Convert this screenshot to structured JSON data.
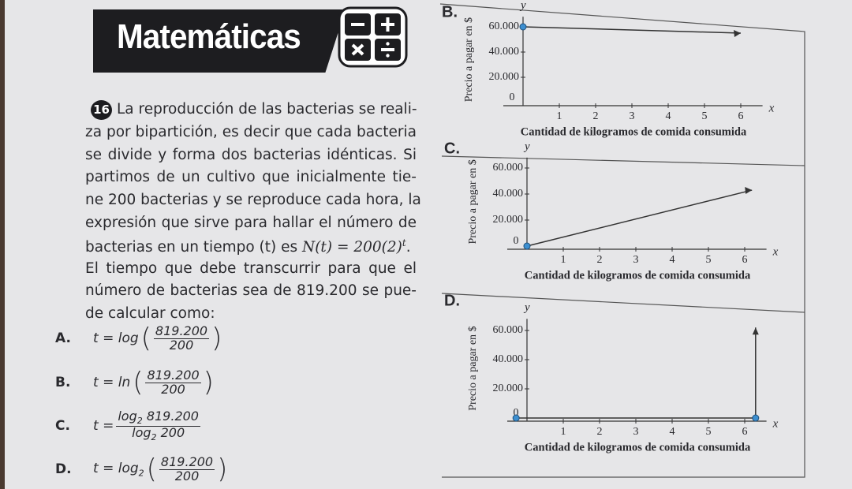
{
  "header": {
    "title": "Matemáticas"
  },
  "problem": {
    "number": "16",
    "lines_before": [
      "La reproducción de las bacterias se reali-",
      "za por bipartición, es decir que cada bacteria",
      "se divide y forma dos bacterias idénticas. Si",
      "partimos de un cultivo que inicialmente tie-",
      "ne 200 bacterias y se reproduce cada hora, la",
      "expresión que sirve para hallar el número de"
    ],
    "formula_line": {
      "lead": "bacterias en un tiempo (t) es ",
      "expr": "N(t) = 200(2)",
      "exponent": "t",
      "end": "."
    },
    "lines_after": [
      "El tiempo que debe transcurrir para que el",
      "número de bacterias sea de 819.200 se pue-",
      "de calcular como:"
    ]
  },
  "options": [
    {
      "letter": "A.",
      "lead": "t = log",
      "numerator": "819.200",
      "denominator": "200"
    },
    {
      "letter": "B.",
      "lead": "t = ln",
      "numerator": "819.200",
      "denominator": "200"
    },
    {
      "letter": "C.",
      "lead": "t =",
      "numerator": {
        "fn": "log",
        "base": "2",
        "arg": "819.200"
      },
      "denominator": {
        "fn": "log",
        "base": "2",
        "arg": "200"
      }
    },
    {
      "letter": "D.",
      "lead": "t = log",
      "base": "2",
      "numerator": "819.200",
      "denominator": "200"
    }
  ],
  "graphs": [
    {
      "letter": "B.",
      "y_label": "y",
      "x_label": "x",
      "y_title": "Precio a pagar en $",
      "x_title": "Cantidad de kilogramos de comida consumida",
      "yticks": [
        "60.000",
        "40.000",
        "20.000"
      ],
      "xticks": [
        "0",
        "1",
        "2",
        "3",
        "4",
        "5",
        "6"
      ]
    },
    {
      "letter": "C.",
      "y_label": "y",
      "x_label": "x",
      "y_title": "Precio a pagar en $",
      "x_title": "Cantidad de kilogramos de comida consumida",
      "yticks": [
        "60.000",
        "40.000",
        "20.000"
      ],
      "xticks": [
        "0",
        "1",
        "2",
        "3",
        "4",
        "5",
        "6"
      ]
    },
    {
      "letter": "D.",
      "y_label": "y",
      "x_label": "x",
      "y_title": "Precio a pagar en $",
      "x_title": "Cantidad de kilogramos de comida consumida",
      "yticks": [
        "60.000",
        "40.000",
        "20.000"
      ],
      "xticks": [
        "0",
        "1",
        "2",
        "3",
        "4",
        "5",
        "6"
      ]
    }
  ]
}
